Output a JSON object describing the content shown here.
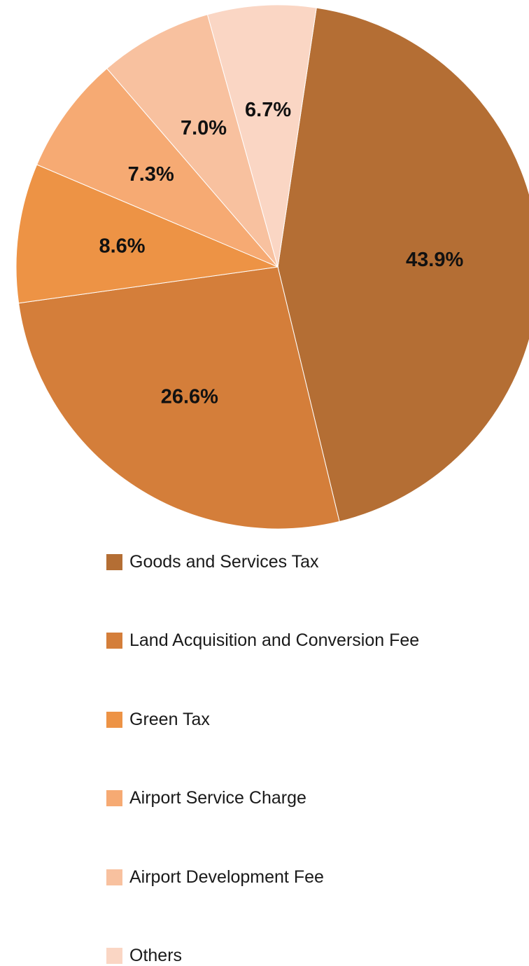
{
  "chart_data": {
    "type": "pie",
    "title": "",
    "categories": [
      "Goods and Services Tax",
      "Land Acquisition and Conversion Fee",
      "Green Tax",
      "Airport Service Charge",
      "Airport Development Fee",
      "Others"
    ],
    "values": [
      43.9,
      26.6,
      8.6,
      7.3,
      7.0,
      6.7
    ],
    "labels": [
      "43.9%",
      "26.6%",
      "8.6%",
      "7.3%",
      "7.0%",
      "6.7%"
    ],
    "colors": [
      "#b46e34",
      "#d47e3a",
      "#ed9345",
      "#f6aa73",
      "#f8c19f",
      "#fad6c4"
    ],
    "legend_position": "bottom"
  },
  "legend": {
    "items": [
      {
        "label": "Goods and Services Tax",
        "color": "#b46e34"
      },
      {
        "label": "Land Acquisition and Conversion Fee",
        "color": "#d47e3a"
      },
      {
        "label": "Green Tax",
        "color": "#ed9345"
      },
      {
        "label": "Airport Service Charge",
        "color": "#f6aa73"
      },
      {
        "label": "Airport Development Fee",
        "color": "#f8c19f"
      },
      {
        "label": "Others",
        "color": "#fad6c4"
      }
    ]
  }
}
